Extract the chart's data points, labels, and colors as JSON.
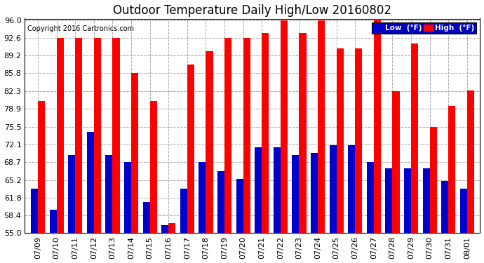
{
  "title": "Outdoor Temperature Daily High/Low 20160802",
  "copyright": "Copyright 2016 Cartronics.com",
  "legend_low": "Low  (°F)",
  "legend_high": "High  (°F)",
  "dates": [
    "07/09",
    "07/10",
    "07/11",
    "07/12",
    "07/13",
    "07/14",
    "07/15",
    "07/16",
    "07/17",
    "07/18",
    "07/19",
    "07/20",
    "07/21",
    "07/22",
    "07/23",
    "07/24",
    "07/25",
    "07/26",
    "07/27",
    "07/28",
    "07/29",
    "07/30",
    "07/31",
    "08/01"
  ],
  "high": [
    80.5,
    92.6,
    92.6,
    92.6,
    92.6,
    85.8,
    80.5,
    57.0,
    87.5,
    90.0,
    92.6,
    92.6,
    93.5,
    96.0,
    93.5,
    96.0,
    90.5,
    90.5,
    96.8,
    82.3,
    91.5,
    75.5,
    79.5,
    82.5
  ],
  "low": [
    63.5,
    59.5,
    70.0,
    74.5,
    70.0,
    68.7,
    61.0,
    56.5,
    63.5,
    68.7,
    67.0,
    65.5,
    71.5,
    71.5,
    70.0,
    70.5,
    72.0,
    72.0,
    68.7,
    67.5,
    67.5,
    67.5,
    65.0,
    63.5
  ],
  "ymin": 55.0,
  "ymax": 96.0,
  "yticks": [
    55.0,
    58.4,
    61.8,
    65.2,
    68.7,
    72.1,
    75.5,
    78.9,
    82.3,
    85.8,
    89.2,
    92.6,
    96.0
  ],
  "high_color": "#ff0000",
  "low_color": "#0000cc",
  "bg_color": "#ffffff",
  "grid_color": "#aaaaaa",
  "bar_width": 0.38,
  "title_fontsize": 12,
  "tick_fontsize": 8.0
}
